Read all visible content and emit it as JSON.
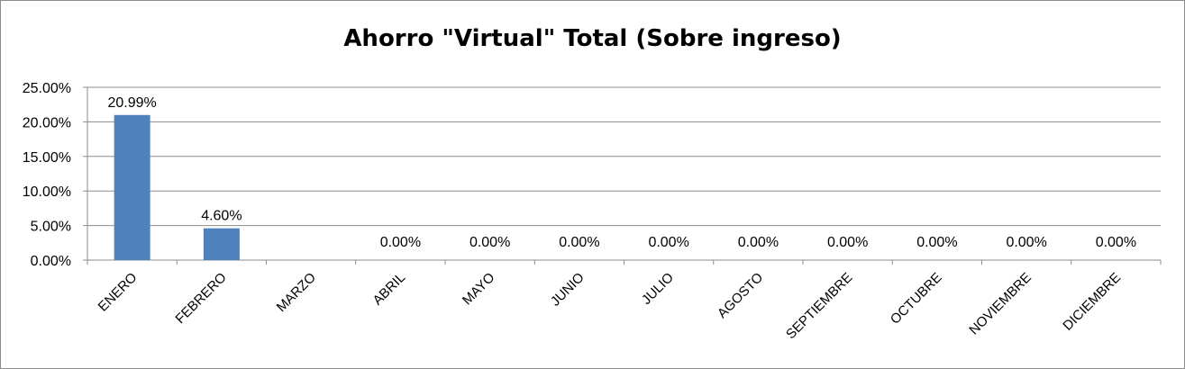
{
  "chart_data": {
    "type": "bar",
    "title": "Ahorro \"Virtual\" Total (Sobre ingreso)",
    "xlabel": "",
    "ylabel": "",
    "categories": [
      "ENERO",
      "FEBRERO",
      "MARZO",
      "ABRIL",
      "MAYO",
      "JUNIO",
      "JULIO",
      "AGOSTO",
      "SEPTIEMBRE",
      "OCTUBRE",
      "NOVIEMBRE",
      "DICIEMBRE"
    ],
    "values": [
      20.99,
      4.6,
      null,
      0,
      0,
      0,
      0,
      0,
      0,
      0,
      0,
      0
    ],
    "data_labels": [
      "20.99%",
      "4.60%",
      "",
      "0.00%",
      "0.00%",
      "0.00%",
      "0.00%",
      "0.00%",
      "0.00%",
      "0.00%",
      "0.00%",
      "0.00%"
    ],
    "ylim": [
      0,
      25
    ],
    "yticks": [
      "0.00%",
      "5.00%",
      "10.00%",
      "15.00%",
      "20.00%",
      "25.00%"
    ],
    "grid": true,
    "legend": "none",
    "bar_color": "#4f81bd"
  }
}
